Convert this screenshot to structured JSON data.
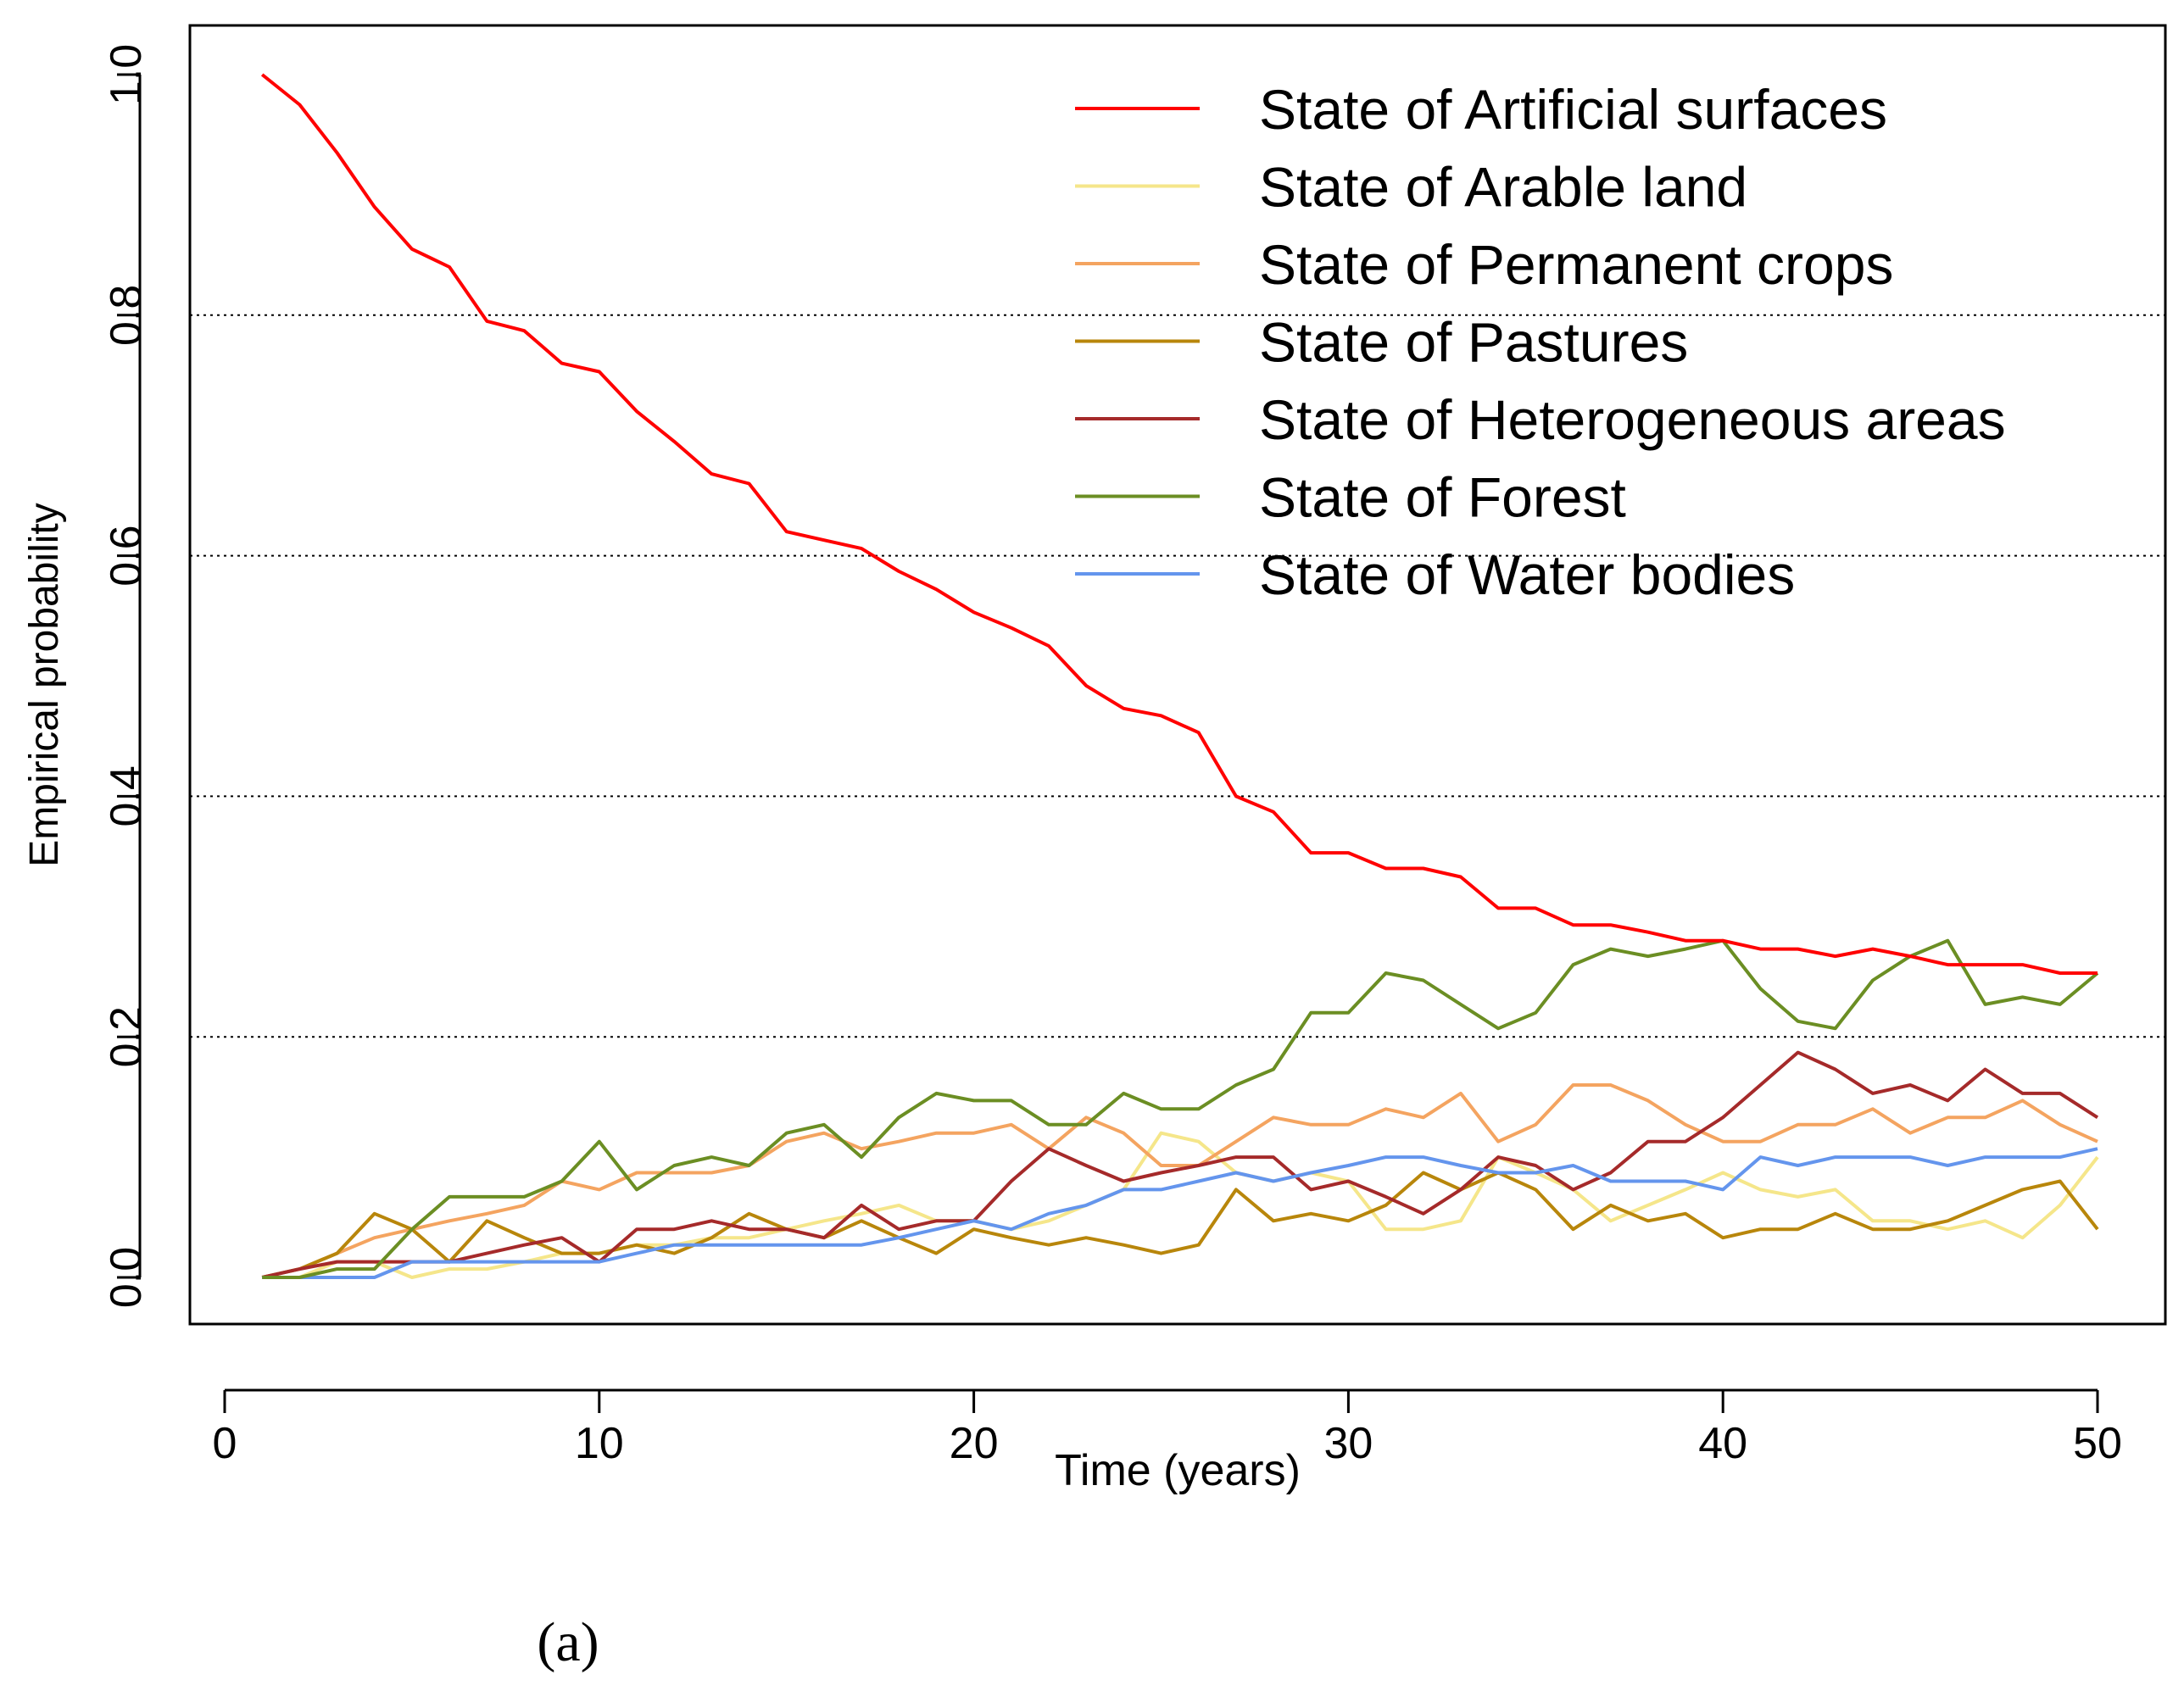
{
  "chart_data": {
    "type": "line",
    "title": "",
    "xlabel": "Time (years)",
    "ylabel": "Empirical probability",
    "xlim": [
      1,
      50
    ],
    "ylim": [
      0,
      1
    ],
    "xticks": [
      0,
      10,
      20,
      30,
      40,
      50
    ],
    "yticks": [
      0.0,
      0.2,
      0.4,
      0.6,
      0.8,
      1.0
    ],
    "ytick_labels": [
      "0.0",
      "0.2",
      "0.4",
      "0.6",
      "0.8",
      "1.0"
    ],
    "gridlines_y": [
      0.2,
      0.4,
      0.6,
      0.8
    ],
    "legend_position": "top-right",
    "x": [
      1,
      2,
      3,
      4,
      5,
      6,
      7,
      8,
      9,
      10,
      11,
      12,
      13,
      14,
      15,
      16,
      17,
      18,
      19,
      20,
      21,
      22,
      23,
      24,
      25,
      26,
      27,
      28,
      29,
      30,
      31,
      32,
      33,
      34,
      35,
      36,
      37,
      38,
      39,
      40,
      41,
      42,
      43,
      44,
      45,
      46,
      47,
      48,
      49,
      50
    ],
    "series": [
      {
        "name": "State of Artificial surfaces",
        "color": "#FF0000",
        "values": [
          1.0,
          0.975,
          0.935,
          0.89,
          0.855,
          0.84,
          0.795,
          0.787,
          0.76,
          0.753,
          0.72,
          0.695,
          0.668,
          0.66,
          0.62,
          0.613,
          0.606,
          0.587,
          0.572,
          0.553,
          0.54,
          0.525,
          0.492,
          0.473,
          0.467,
          0.453,
          0.4,
          0.387,
          0.353,
          0.353,
          0.34,
          0.34,
          0.333,
          0.307,
          0.307,
          0.293,
          0.293,
          0.287,
          0.28,
          0.28,
          0.273,
          0.273,
          0.267,
          0.273,
          0.267,
          0.26,
          0.26,
          0.26,
          0.253,
          0.253
        ]
      },
      {
        "name": "State of Arable land",
        "color": "#F5E68A",
        "values": [
          0.0,
          0.0,
          0.013,
          0.013,
          0.0,
          0.007,
          0.007,
          0.013,
          0.02,
          0.02,
          0.027,
          0.027,
          0.033,
          0.033,
          0.04,
          0.047,
          0.053,
          0.06,
          0.047,
          0.047,
          0.04,
          0.047,
          0.06,
          0.073,
          0.12,
          0.113,
          0.087,
          0.08,
          0.087,
          0.08,
          0.04,
          0.04,
          0.047,
          0.1,
          0.087,
          0.073,
          0.047,
          0.06,
          0.073,
          0.087,
          0.073,
          0.067,
          0.073,
          0.047,
          0.047,
          0.04,
          0.047,
          0.033,
          0.06,
          0.1
        ]
      },
      {
        "name": "State of Permanent crops",
        "color": "#F4A460",
        "values": [
          0.0,
          0.007,
          0.02,
          0.033,
          0.04,
          0.047,
          0.053,
          0.06,
          0.08,
          0.073,
          0.087,
          0.087,
          0.087,
          0.093,
          0.113,
          0.12,
          0.107,
          0.113,
          0.12,
          0.12,
          0.127,
          0.107,
          0.133,
          0.12,
          0.093,
          0.093,
          0.113,
          0.133,
          0.127,
          0.127,
          0.14,
          0.133,
          0.153,
          0.113,
          0.127,
          0.16,
          0.16,
          0.147,
          0.127,
          0.113,
          0.113,
          0.127,
          0.127,
          0.14,
          0.12,
          0.133,
          0.133,
          0.147,
          0.127,
          0.113
        ]
      },
      {
        "name": "State of Pastures",
        "color": "#B8860B",
        "values": [
          0.0,
          0.007,
          0.02,
          0.053,
          0.04,
          0.013,
          0.047,
          0.033,
          0.02,
          0.02,
          0.027,
          0.02,
          0.033,
          0.053,
          0.04,
          0.033,
          0.047,
          0.033,
          0.02,
          0.04,
          0.033,
          0.027,
          0.033,
          0.027,
          0.02,
          0.027,
          0.073,
          0.047,
          0.053,
          0.047,
          0.06,
          0.087,
          0.073,
          0.087,
          0.073,
          0.04,
          0.06,
          0.047,
          0.053,
          0.033,
          0.04,
          0.04,
          0.053,
          0.04,
          0.04,
          0.047,
          0.06,
          0.073,
          0.08,
          0.04
        ]
      },
      {
        "name": "State of Heterogeneous areas",
        "color": "#A52A2A",
        "values": [
          0.0,
          0.007,
          0.013,
          0.013,
          0.013,
          0.013,
          0.02,
          0.027,
          0.033,
          0.013,
          0.04,
          0.04,
          0.047,
          0.04,
          0.04,
          0.033,
          0.06,
          0.04,
          0.047,
          0.047,
          0.08,
          0.107,
          0.093,
          0.08,
          0.087,
          0.093,
          0.1,
          0.1,
          0.073,
          0.08,
          0.067,
          0.053,
          0.073,
          0.1,
          0.093,
          0.073,
          0.087,
          0.113,
          0.113,
          0.133,
          0.16,
          0.187,
          0.173,
          0.153,
          0.16,
          0.147,
          0.173,
          0.153,
          0.153,
          0.133
        ]
      },
      {
        "name": "State of Forest",
        "color": "#6B8E23",
        "values": [
          0.0,
          0.0,
          0.007,
          0.007,
          0.04,
          0.067,
          0.067,
          0.067,
          0.08,
          0.113,
          0.073,
          0.093,
          0.1,
          0.093,
          0.12,
          0.127,
          0.1,
          0.133,
          0.153,
          0.147,
          0.147,
          0.127,
          0.127,
          0.153,
          0.14,
          0.14,
          0.16,
          0.173,
          0.22,
          0.22,
          0.253,
          0.247,
          0.227,
          0.207,
          0.22,
          0.26,
          0.273,
          0.267,
          0.273,
          0.28,
          0.24,
          0.213,
          0.207,
          0.247,
          0.267,
          0.28,
          0.227,
          0.233,
          0.227,
          0.253
        ]
      },
      {
        "name": "State of Water bodies",
        "color": "#6495ED",
        "values": [
          0.0,
          0.0,
          0.0,
          0.0,
          0.013,
          0.013,
          0.013,
          0.013,
          0.013,
          0.013,
          0.02,
          0.027,
          0.027,
          0.027,
          0.027,
          0.027,
          0.027,
          0.033,
          0.04,
          0.047,
          0.04,
          0.053,
          0.06,
          0.073,
          0.073,
          0.08,
          0.087,
          0.08,
          0.087,
          0.093,
          0.1,
          0.1,
          0.093,
          0.087,
          0.087,
          0.093,
          0.08,
          0.08,
          0.08,
          0.073,
          0.1,
          0.093,
          0.1,
          0.1,
          0.1,
          0.093,
          0.1,
          0.1,
          0.1,
          0.107
        ]
      }
    ]
  },
  "caption": "(a)"
}
